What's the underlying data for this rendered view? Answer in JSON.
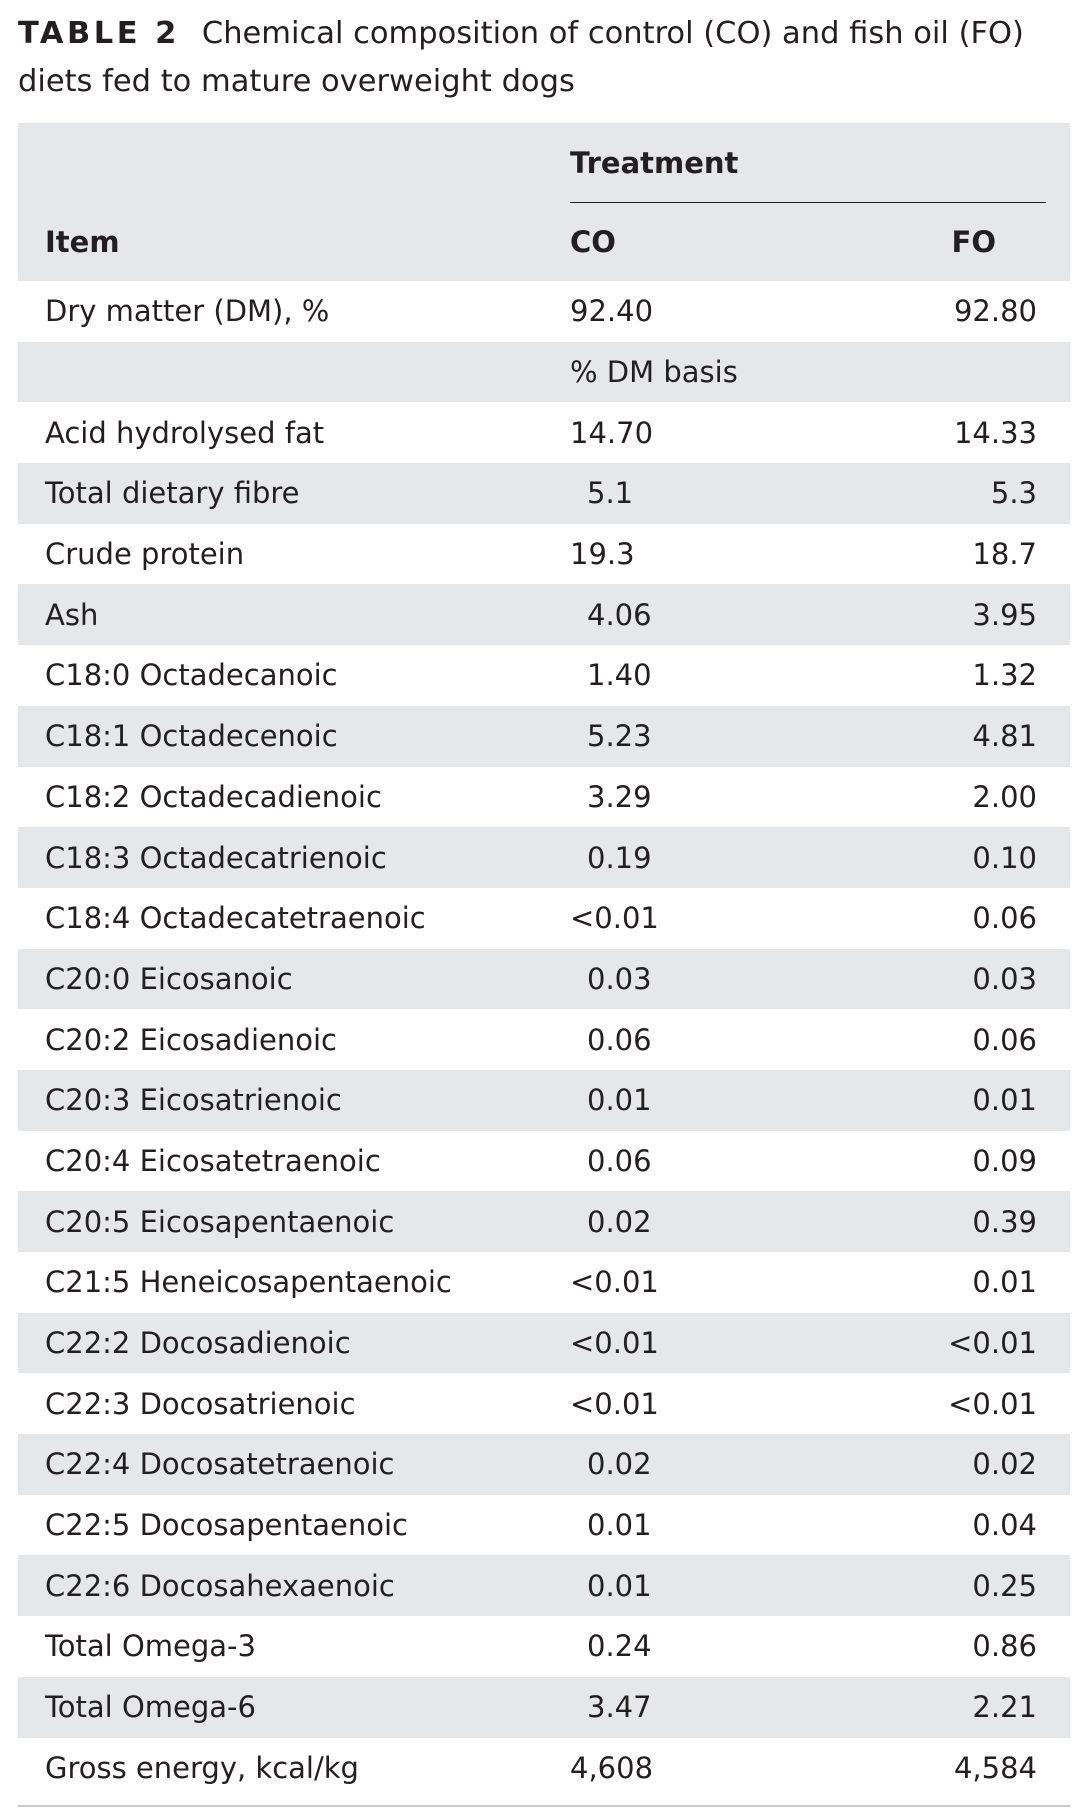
{
  "caption": {
    "label": "TABLE 2",
    "text": "Chemical composition of control (CO) and fish oil (FO) diets fed to mature overweight dogs"
  },
  "header": {
    "group_label": "Treatment",
    "col_item": "Item",
    "col_co": "CO",
    "col_fo": "FO"
  },
  "rows": [
    {
      "item": "Dry matter (DM), %",
      "co": "92.40",
      "fo": "92.80"
    },
    {
      "basis": "% DM basis"
    },
    {
      "item": "Acid hydrolysed fat",
      "co": "14.70",
      "fo": "14.33"
    },
    {
      "item": "Total dietary fibre",
      "co": "5.1",
      "fo": "5.3"
    },
    {
      "item": "Crude protein",
      "co": "19.3",
      "fo": "18.7"
    },
    {
      "item": "Ash",
      "co": "4.06",
      "fo": "3.95"
    },
    {
      "item": "C18:0 Octadecanoic",
      "co": "1.40",
      "fo": "1.32"
    },
    {
      "item": "C18:1 Octadecenoic",
      "co": "5.23",
      "fo": "4.81"
    },
    {
      "item": "C18:2 Octadecadienoic",
      "co": "3.29",
      "fo": "2.00"
    },
    {
      "item": "C18:3 Octadecatrienoic",
      "co": "0.19",
      "fo": "0.10"
    },
    {
      "item": "C18:4 Octadecatetraenoic",
      "co": "<0.01",
      "fo": "0.06"
    },
    {
      "item": "C20:0 Eicosanoic",
      "co": "0.03",
      "fo": "0.03"
    },
    {
      "item": "C20:2 Eicosadienoic",
      "co": "0.06",
      "fo": "0.06"
    },
    {
      "item": "C20:3 Eicosatrienoic",
      "co": "0.01",
      "fo": "0.01"
    },
    {
      "item": "C20:4 Eicosatetraenoic",
      "co": "0.06",
      "fo": "0.09"
    },
    {
      "item": "C20:5 Eicosapentaenoic",
      "co": "0.02",
      "fo": "0.39"
    },
    {
      "item": "C21:5 Heneicosapentaenoic",
      "co": "<0.01",
      "fo": "0.01"
    },
    {
      "item": "C22:2 Docosadienoic",
      "co": "<0.01",
      "fo": "<0.01"
    },
    {
      "item": "C22:3 Docosatrienoic",
      "co": "<0.01",
      "fo": "<0.01"
    },
    {
      "item": "C22:4 Docosatetraenoic",
      "co": "0.02",
      "fo": "0.02"
    },
    {
      "item": "C22:5 Docosapentaenoic",
      "co": "0.01",
      "fo": "0.04"
    },
    {
      "item": "C22:6 Docosahexaenoic",
      "co": "0.01",
      "fo": "0.25"
    },
    {
      "item": "Total Omega-3",
      "co": "0.24",
      "fo": "0.86"
    },
    {
      "item": "Total Omega-6",
      "co": "3.47",
      "fo": "2.21"
    },
    {
      "item": "Gross energy, kcal/kg",
      "co": "4,608",
      "fo": "4,584"
    }
  ]
}
